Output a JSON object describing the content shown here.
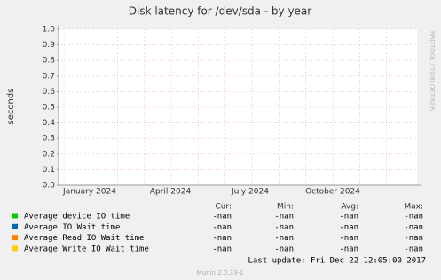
{
  "chart_data": {
    "type": "line",
    "title": "Disk latency for /dev/sda - by year",
    "y_label": "seconds",
    "watermark": "RRDTOOL / TOBI OETIKER",
    "ylim": [
      0,
      1
    ],
    "yticks": [
      {
        "value": 0,
        "label": "0.0"
      },
      {
        "value": 0.1,
        "label": "0.1"
      },
      {
        "value": 0.2,
        "label": "0.2"
      },
      {
        "value": 0.3,
        "label": "0.3"
      },
      {
        "value": 0.4,
        "label": "0.4"
      },
      {
        "value": 0.5,
        "label": "0.5"
      },
      {
        "value": 0.6,
        "label": "0.6"
      },
      {
        "value": 0.7,
        "label": "0.7"
      },
      {
        "value": 0.8,
        "label": "0.8"
      },
      {
        "value": 0.9,
        "label": "0.9"
      },
      {
        "value": 1,
        "label": "1.0"
      }
    ],
    "x_tick_labels": [
      "January 2024",
      "April 2024",
      "July 2024",
      "October 2024"
    ],
    "grid": true,
    "legend_columns": [
      "Cur:",
      "Min:",
      "Avg:",
      "Max:"
    ],
    "series": [
      {
        "name": "Average device IO time",
        "color": "#00cc00",
        "stats": [
          "-nan",
          "-nan",
          "-nan",
          "-nan"
        ]
      },
      {
        "name": "Average IO Wait time",
        "color": "#0066b3",
        "stats": [
          "-nan",
          "-nan",
          "-nan",
          "-nan"
        ]
      },
      {
        "name": "Average Read IO Wait time",
        "color": "#ff8000",
        "stats": [
          "-nan",
          "-nan",
          "-nan",
          "-nan"
        ]
      },
      {
        "name": "Average Write IO Wait time",
        "color": "#ffcc00",
        "stats": [
          "-nan",
          "-nan",
          "-nan",
          "-nan"
        ]
      }
    ],
    "last_update": "Last update:  Fri Dec 22 12:05:00 2017",
    "footer": "Munin 2.0.33-1"
  }
}
